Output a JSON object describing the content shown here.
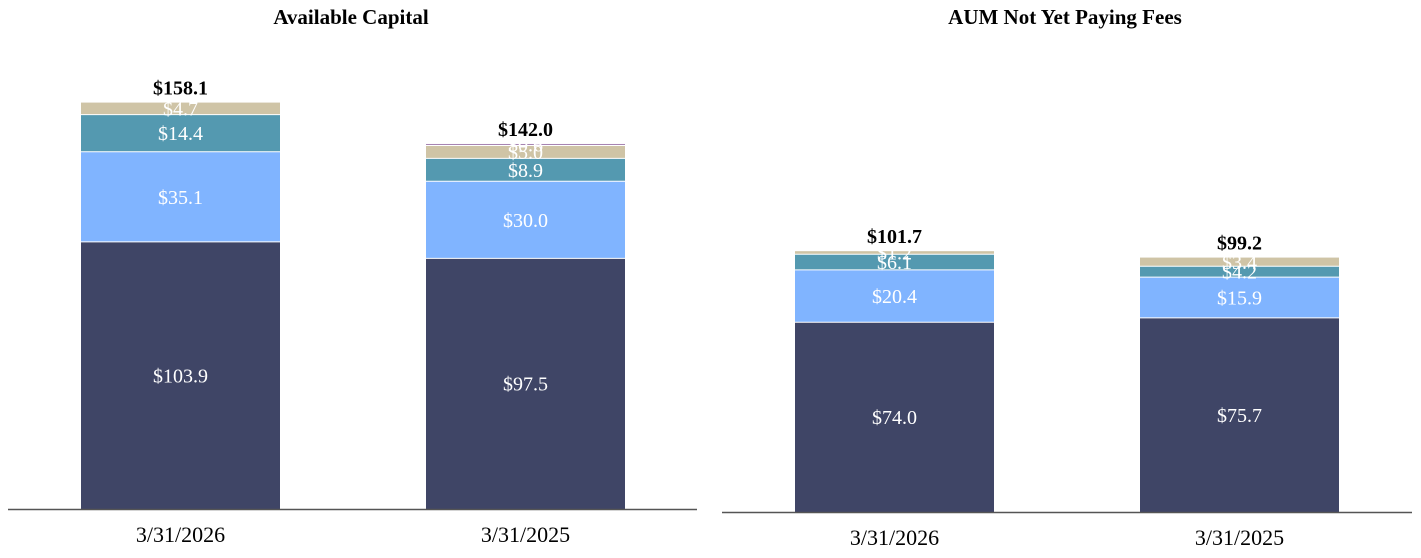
{
  "colors": {
    "series": [
      "#3f4566",
      "#80b4ff",
      "#5499b0",
      "#cfc4a6",
      "#a784b2"
    ],
    "axis": "#555555"
  },
  "chart_data": [
    {
      "type": "bar",
      "stacked": true,
      "title": "Available Capital",
      "categories": [
        "3/31/2026",
        "3/31/2025"
      ],
      "series": [
        {
          "values": [
            103.9,
            97.5
          ],
          "labels": [
            "$103.9",
            "$97.5"
          ]
        },
        {
          "values": [
            35.1,
            30.0
          ],
          "labels": [
            "$35.1",
            "$30.0"
          ]
        },
        {
          "values": [
            14.4,
            8.9
          ],
          "labels": [
            "$14.4",
            "$8.9"
          ]
        },
        {
          "values": [
            4.7,
            5.0
          ],
          "labels": [
            "$4.7",
            "$5.0"
          ]
        },
        {
          "values": [
            0,
            0.6
          ],
          "labels": [
            "",
            "$0.6"
          ]
        }
      ],
      "totals": [
        158.1,
        142.0
      ],
      "total_labels": [
        "$158.1",
        "$142.0"
      ],
      "ylim": [
        0,
        170
      ],
      "grid": false,
      "legend": false
    },
    {
      "type": "bar",
      "stacked": true,
      "title": "AUM Not Yet Paying Fees",
      "categories": [
        "3/31/2026",
        "3/31/2025"
      ],
      "series": [
        {
          "values": [
            74.0,
            75.7
          ],
          "labels": [
            "$74.0",
            "$75.7"
          ]
        },
        {
          "values": [
            20.4,
            15.9
          ],
          "labels": [
            "$20.4",
            "$15.9"
          ]
        },
        {
          "values": [
            6.1,
            4.2
          ],
          "labels": [
            "$6.1",
            "$4.2"
          ]
        },
        {
          "values": [
            1.2,
            3.4
          ],
          "labels": [
            "$1.2",
            "$3.4"
          ]
        }
      ],
      "totals": [
        101.7,
        99.2
      ],
      "total_labels": [
        "$101.7",
        "$99.2"
      ],
      "ylim": [
        0,
        170
      ],
      "grid": false,
      "legend": false
    }
  ]
}
